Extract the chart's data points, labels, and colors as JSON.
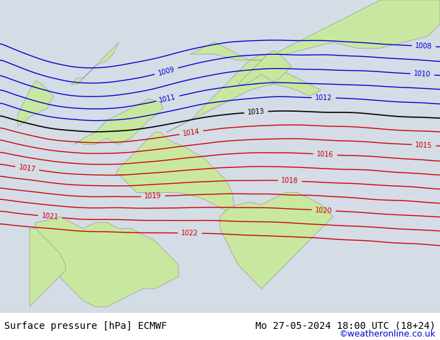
{
  "title_left": "Surface pressure [hPa] ECMWF",
  "title_right": "Mo 27-05-2024 18:00 UTC (18+24)",
  "credit": "©weatheronline.co.uk",
  "bg_color": "#e8e8e8",
  "land_color": "#c8e8a0",
  "border_color": "#aaaaaa",
  "contour_levels_blue": [
    1008,
    1009,
    1010,
    1011,
    1012
  ],
  "contour_levels_black": [
    1013
  ],
  "contour_levels_red": [
    1014,
    1015,
    1016,
    1017,
    1018,
    1019,
    1020,
    1021,
    1022
  ],
  "contour_color_blue": "#0000cc",
  "contour_color_black": "#000000",
  "contour_color_red": "#cc0000",
  "figsize": [
    6.34,
    4.9
  ],
  "dpi": 100
}
